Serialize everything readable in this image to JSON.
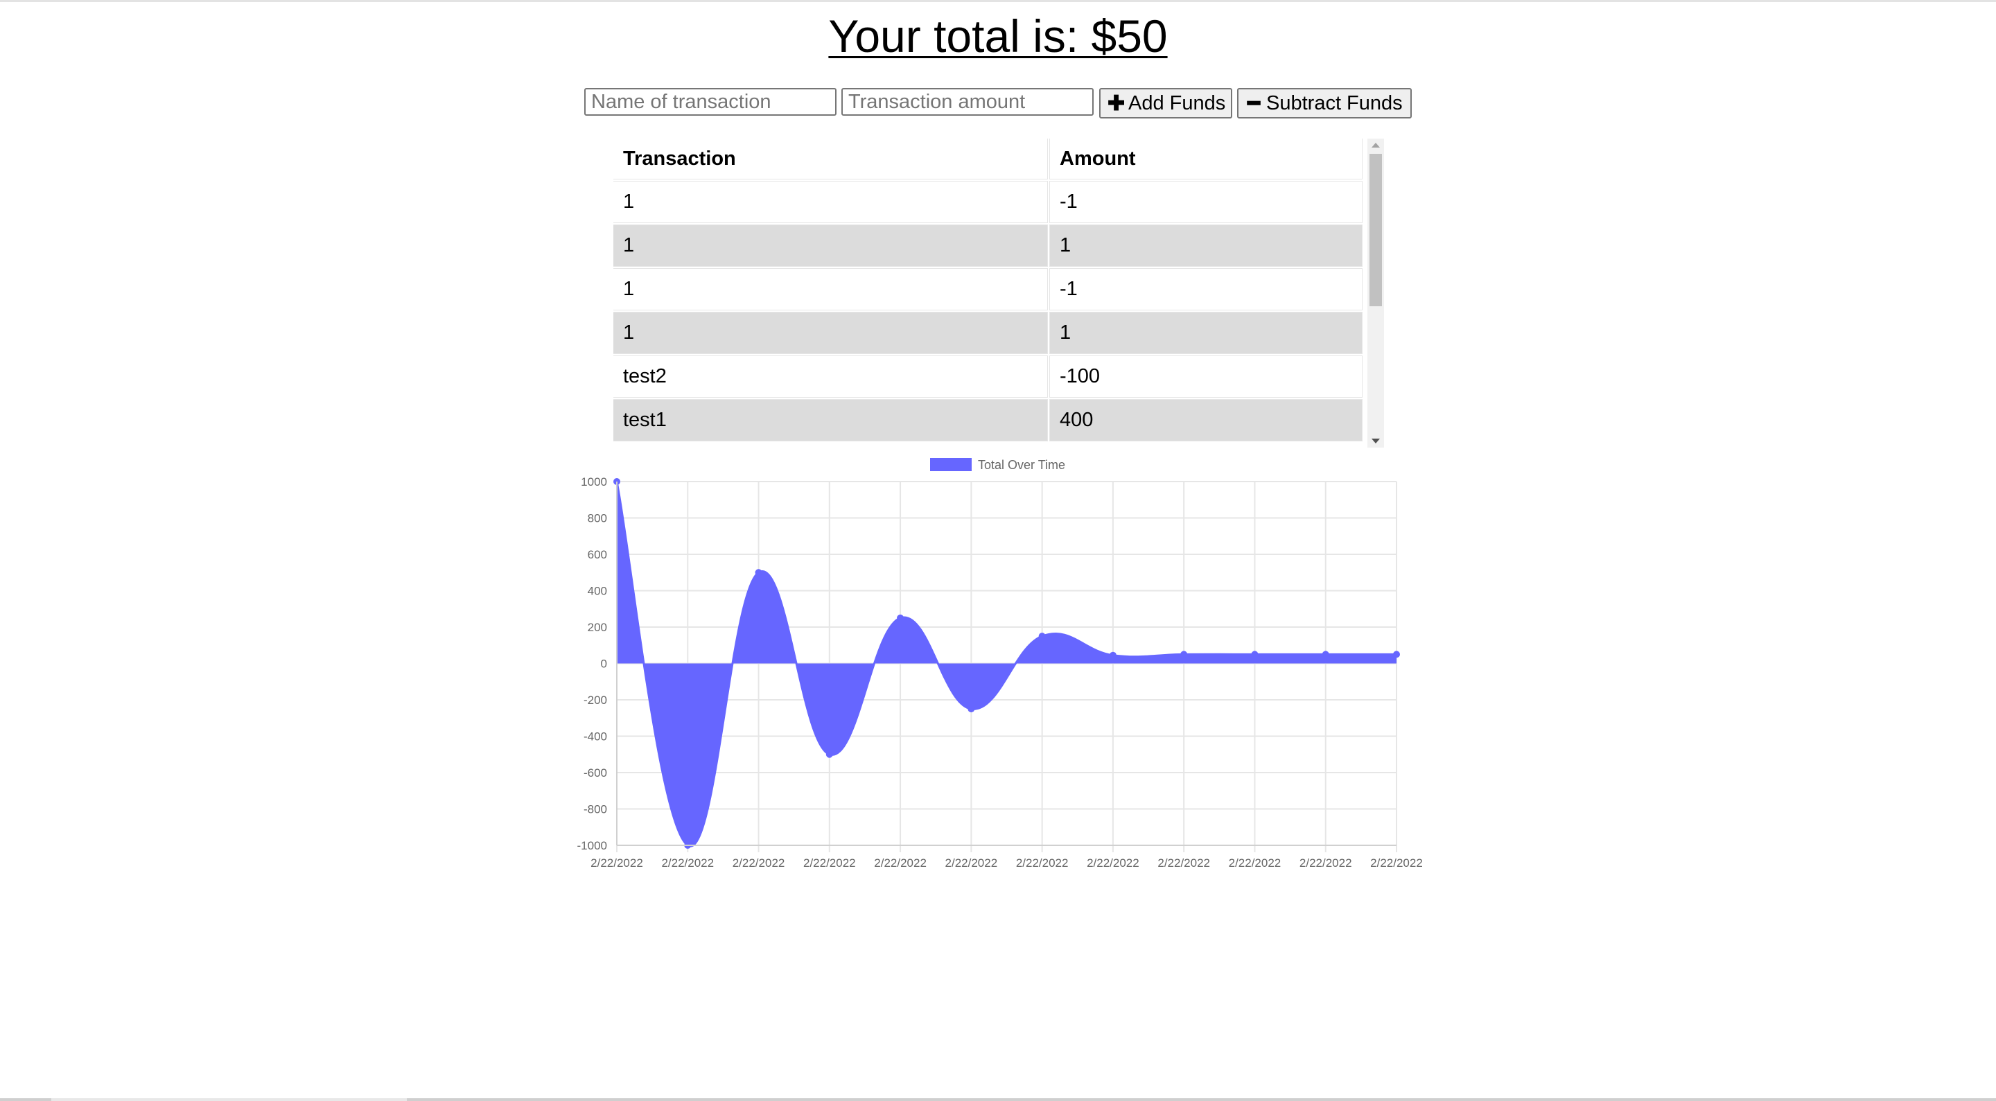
{
  "header": {
    "title": "Your total is: $50"
  },
  "form": {
    "name_placeholder": "Name of transaction",
    "amount_placeholder": "Transaction amount",
    "add_label": "Add Funds",
    "subtract_label": "Subtract Funds",
    "add_icon": "plus-icon",
    "subtract_icon": "minus-icon"
  },
  "table": {
    "headers": [
      "Transaction",
      "Amount"
    ],
    "rows": [
      {
        "name": "1",
        "amount": "-1"
      },
      {
        "name": "1",
        "amount": "1"
      },
      {
        "name": "1",
        "amount": "-1"
      },
      {
        "name": "1",
        "amount": "1"
      },
      {
        "name": "test2",
        "amount": "-100"
      },
      {
        "name": "test1",
        "amount": "400"
      }
    ]
  },
  "colors": {
    "series_fill": "#6666ff",
    "grid": "#e6e6e6",
    "tick_text": "#666666"
  },
  "chart_data": {
    "type": "area",
    "legend": {
      "label": "Total Over Time",
      "placement": "top-center"
    },
    "x": [
      "2/22/2022",
      "2/22/2022",
      "2/22/2022",
      "2/22/2022",
      "2/22/2022",
      "2/22/2022",
      "2/22/2022",
      "2/22/2022",
      "2/22/2022",
      "2/22/2022",
      "2/22/2022",
      "2/22/2022"
    ],
    "series": [
      {
        "name": "Total Over Time",
        "values": [
          1000,
          -1000,
          500,
          -500,
          250,
          -250,
          150,
          45,
          50,
          50,
          50,
          50
        ]
      }
    ],
    "ylim": [
      -1000,
      1000
    ],
    "yticks": [
      1000,
      800,
      600,
      400,
      200,
      0,
      -200,
      -400,
      -600,
      -800,
      -1000
    ],
    "grid": true,
    "title": "",
    "xlabel": "",
    "ylabel": ""
  }
}
